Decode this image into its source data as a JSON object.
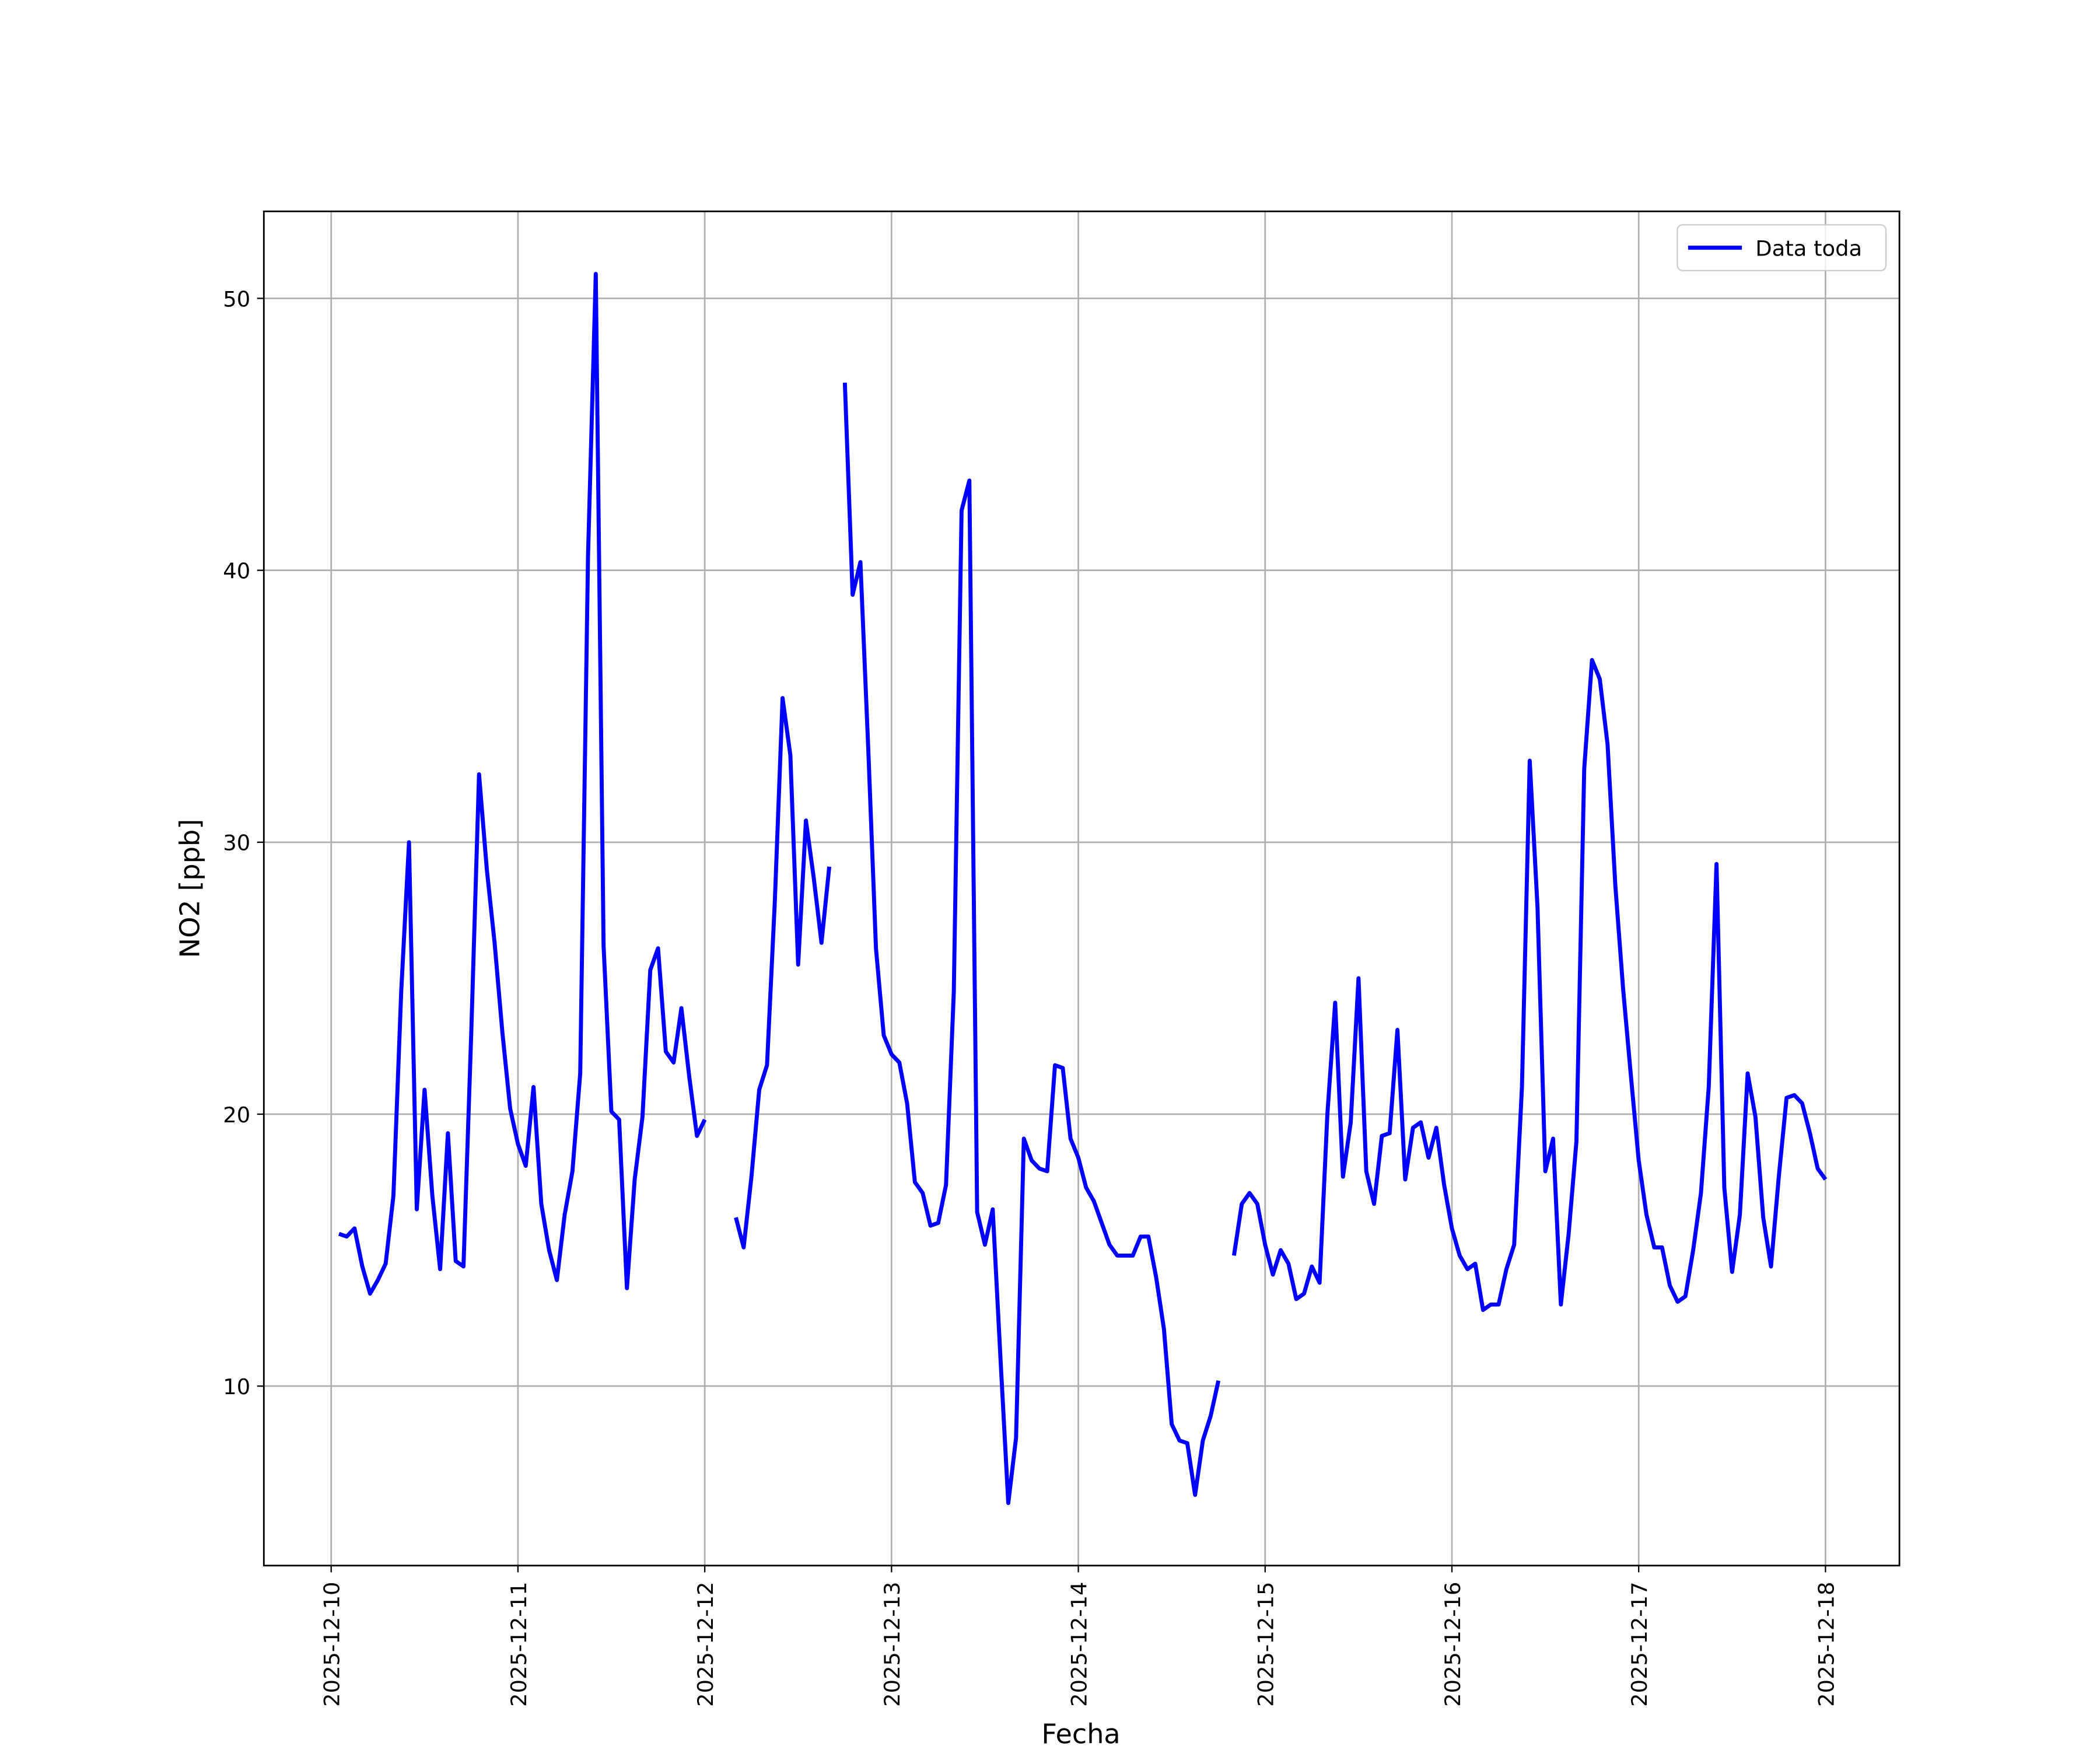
{
  "chart_data": {
    "type": "line",
    "xlabel": "Fecha",
    "ylabel": "NO2 [ppb]",
    "x": [
      "2025-12-10 01:00",
      "2025-12-10 02:00",
      "2025-12-10 03:00",
      "2025-12-10 04:00",
      "2025-12-10 05:00",
      "2025-12-10 06:00",
      "2025-12-10 07:00",
      "2025-12-10 08:00",
      "2025-12-10 09:00",
      "2025-12-10 10:00",
      "2025-12-10 11:00",
      "2025-12-10 12:00",
      "2025-12-10 13:00",
      "2025-12-10 14:00",
      "2025-12-10 15:00",
      "2025-12-10 16:00",
      "2025-12-10 17:00",
      "2025-12-10 18:00",
      "2025-12-10 19:00",
      "2025-12-10 20:00",
      "2025-12-10 21:00",
      "2025-12-10 22:00",
      "2025-12-10 23:00",
      "2025-12-11 00:00",
      "2025-12-11 01:00",
      "2025-12-11 02:00",
      "2025-12-11 03:00",
      "2025-12-11 04:00",
      "2025-12-11 05:00",
      "2025-12-11 06:00",
      "2025-12-11 07:00",
      "2025-12-11 08:00",
      "2025-12-11 09:00",
      "2025-12-11 10:00",
      "2025-12-11 11:00",
      "2025-12-11 12:00",
      "2025-12-11 13:00",
      "2025-12-11 14:00",
      "2025-12-11 15:00",
      "2025-12-11 16:00",
      "2025-12-11 17:00",
      "2025-12-11 18:00",
      "2025-12-11 19:00",
      "2025-12-11 20:00",
      "2025-12-11 21:00",
      "2025-12-11 22:00",
      "2025-12-11 23:00",
      "2025-12-12 00:00",
      "2025-12-12 01:00",
      "2025-12-12 02:00",
      "2025-12-12 03:00",
      "2025-12-12 04:00",
      "2025-12-12 05:00",
      "2025-12-12 06:00",
      "2025-12-12 07:00",
      "2025-12-12 08:00",
      "2025-12-12 09:00",
      "2025-12-12 10:00",
      "2025-12-12 11:00",
      "2025-12-12 12:00",
      "2025-12-12 13:00",
      "2025-12-12 14:00",
      "2025-12-12 15:00",
      "2025-12-12 16:00",
      "2025-12-12 17:00",
      "2025-12-12 18:00",
      "2025-12-12 19:00",
      "2025-12-12 20:00",
      "2025-12-12 21:00",
      "2025-12-12 22:00",
      "2025-12-12 23:00",
      "2025-12-13 00:00",
      "2025-12-13 01:00",
      "2025-12-13 02:00",
      "2025-12-13 03:00",
      "2025-12-13 04:00",
      "2025-12-13 05:00",
      "2025-12-13 06:00",
      "2025-12-13 07:00",
      "2025-12-13 08:00",
      "2025-12-13 09:00",
      "2025-12-13 10:00",
      "2025-12-13 11:00",
      "2025-12-13 12:00",
      "2025-12-13 13:00",
      "2025-12-13 14:00",
      "2025-12-13 15:00",
      "2025-12-13 16:00",
      "2025-12-13 17:00",
      "2025-12-13 18:00",
      "2025-12-13 19:00",
      "2025-12-13 20:00",
      "2025-12-13 21:00",
      "2025-12-13 22:00",
      "2025-12-13 23:00",
      "2025-12-14 00:00",
      "2025-12-14 01:00",
      "2025-12-14 02:00",
      "2025-12-14 03:00",
      "2025-12-14 04:00",
      "2025-12-14 05:00",
      "2025-12-14 06:00",
      "2025-12-14 07:00",
      "2025-12-14 08:00",
      "2025-12-14 09:00",
      "2025-12-14 10:00",
      "2025-12-14 11:00",
      "2025-12-14 12:00",
      "2025-12-14 13:00",
      "2025-12-14 14:00",
      "2025-12-14 15:00",
      "2025-12-14 16:00",
      "2025-12-14 17:00",
      "2025-12-14 18:00",
      "2025-12-14 19:00",
      "2025-12-14 20:00",
      "2025-12-14 21:00",
      "2025-12-14 22:00",
      "2025-12-14 23:00",
      "2025-12-15 00:00",
      "2025-12-15 01:00",
      "2025-12-15 02:00",
      "2025-12-15 03:00",
      "2025-12-15 04:00",
      "2025-12-15 05:00",
      "2025-12-15 06:00",
      "2025-12-15 07:00",
      "2025-12-15 08:00",
      "2025-12-15 09:00",
      "2025-12-15 10:00",
      "2025-12-15 11:00",
      "2025-12-15 12:00",
      "2025-12-15 13:00",
      "2025-12-15 14:00",
      "2025-12-15 15:00",
      "2025-12-15 16:00",
      "2025-12-15 17:00",
      "2025-12-15 18:00",
      "2025-12-15 19:00",
      "2025-12-15 20:00",
      "2025-12-15 21:00",
      "2025-12-15 22:00",
      "2025-12-15 23:00",
      "2025-12-16 00:00",
      "2025-12-16 01:00",
      "2025-12-16 02:00",
      "2025-12-16 03:00",
      "2025-12-16 04:00",
      "2025-12-16 05:00",
      "2025-12-16 06:00",
      "2025-12-16 07:00",
      "2025-12-16 08:00",
      "2025-12-16 09:00",
      "2025-12-16 10:00",
      "2025-12-16 11:00",
      "2025-12-16 12:00",
      "2025-12-16 13:00",
      "2025-12-16 14:00",
      "2025-12-16 15:00",
      "2025-12-16 16:00",
      "2025-12-16 17:00",
      "2025-12-16 18:00",
      "2025-12-16 19:00",
      "2025-12-16 20:00",
      "2025-12-16 21:00",
      "2025-12-16 22:00",
      "2025-12-16 23:00",
      "2025-12-17 00:00",
      "2025-12-17 01:00",
      "2025-12-17 02:00",
      "2025-12-17 03:00",
      "2025-12-17 04:00",
      "2025-12-17 05:00",
      "2025-12-17 06:00",
      "2025-12-17 07:00",
      "2025-12-17 08:00",
      "2025-12-17 09:00",
      "2025-12-17 10:00",
      "2025-12-17 11:00",
      "2025-12-17 12:00",
      "2025-12-17 13:00",
      "2025-12-17 14:00",
      "2025-12-17 15:00",
      "2025-12-17 16:00",
      "2025-12-17 17:00",
      "2025-12-17 18:00",
      "2025-12-17 19:00",
      "2025-12-17 20:00",
      "2025-12-17 21:00",
      "2025-12-17 22:00",
      "2025-12-17 23:00",
      "2025-12-18 00:00"
    ],
    "series": [
      {
        "name": "Data toda",
        "color": "#0000ff",
        "values": [
          15.6,
          15.5,
          15.8,
          14.4,
          13.4,
          13.9,
          14.5,
          17.0,
          24.5,
          30.0,
          16.5,
          20.9,
          17.0,
          14.3,
          19.3,
          14.6,
          14.4,
          23.0,
          32.5,
          29.0,
          26.3,
          23.0,
          20.2,
          18.9,
          18.1,
          21.0,
          16.7,
          15.0,
          13.9,
          16.3,
          17.9,
          21.5,
          40.5,
          50.9,
          26.2,
          20.1,
          19.8,
          13.6,
          17.6,
          19.9,
          25.3,
          26.1,
          22.3,
          21.9,
          23.9,
          21.4,
          19.2,
          19.8,
          null,
          null,
          null,
          16.2,
          15.1,
          17.7,
          20.9,
          21.8,
          27.8,
          35.3,
          33.2,
          25.5,
          30.8,
          28.7,
          26.3,
          29.1,
          null,
          46.9,
          39.1,
          40.3,
          33.5,
          26.1,
          22.9,
          22.2,
          21.9,
          20.4,
          17.5,
          17.1,
          15.9,
          16.0,
          17.4,
          24.5,
          42.2,
          43.3,
          16.4,
          15.2,
          16.5,
          11.0,
          5.7,
          8.1,
          19.1,
          18.3,
          18.0,
          17.9,
          21.8,
          21.7,
          19.1,
          18.4,
          17.3,
          16.8,
          16.0,
          15.2,
          14.8,
          14.8,
          14.8,
          15.5,
          15.5,
          14.0,
          12.1,
          8.6,
          8.0,
          7.9,
          6.0,
          8.0,
          8.9,
          10.2,
          null,
          14.8,
          16.7,
          17.1,
          16.7,
          15.2,
          14.1,
          15.0,
          14.5,
          13.2,
          13.4,
          14.4,
          13.8,
          20.0,
          24.1,
          17.7,
          19.7,
          25.0,
          17.9,
          16.7,
          19.2,
          19.3,
          23.1,
          17.6,
          19.5,
          19.7,
          18.4,
          19.5,
          17.4,
          15.8,
          14.8,
          14.3,
          14.5,
          12.8,
          13.0,
          13.0,
          14.3,
          15.2,
          21.0,
          33.0,
          27.6,
          17.9,
          19.1,
          13.0,
          15.6,
          19.0,
          32.7,
          36.7,
          36.0,
          33.6,
          28.4,
          24.6,
          21.4,
          18.3,
          16.3,
          15.1,
          15.1,
          13.7,
          13.1,
          13.3,
          15.0,
          17.1,
          21.0,
          29.2,
          17.3,
          14.2,
          16.3,
          21.5,
          19.9,
          16.2,
          14.4,
          17.7,
          20.6,
          20.7,
          20.4,
          19.3,
          18.0,
          17.6
        ]
      }
    ],
    "xlim": [
      "2025-12-09 15:21",
      "2025-12-18 09:30"
    ],
    "xticks": [
      "2025-12-10",
      "2025-12-11",
      "2025-12-12",
      "2025-12-13",
      "2025-12-14",
      "2025-12-15",
      "2025-12-16",
      "2025-12-17",
      "2025-12-18"
    ],
    "ylim": [
      3.4,
      53.2
    ],
    "yticks": [
      10,
      20,
      30,
      40,
      50
    ],
    "grid": true,
    "legend": "upper right"
  }
}
